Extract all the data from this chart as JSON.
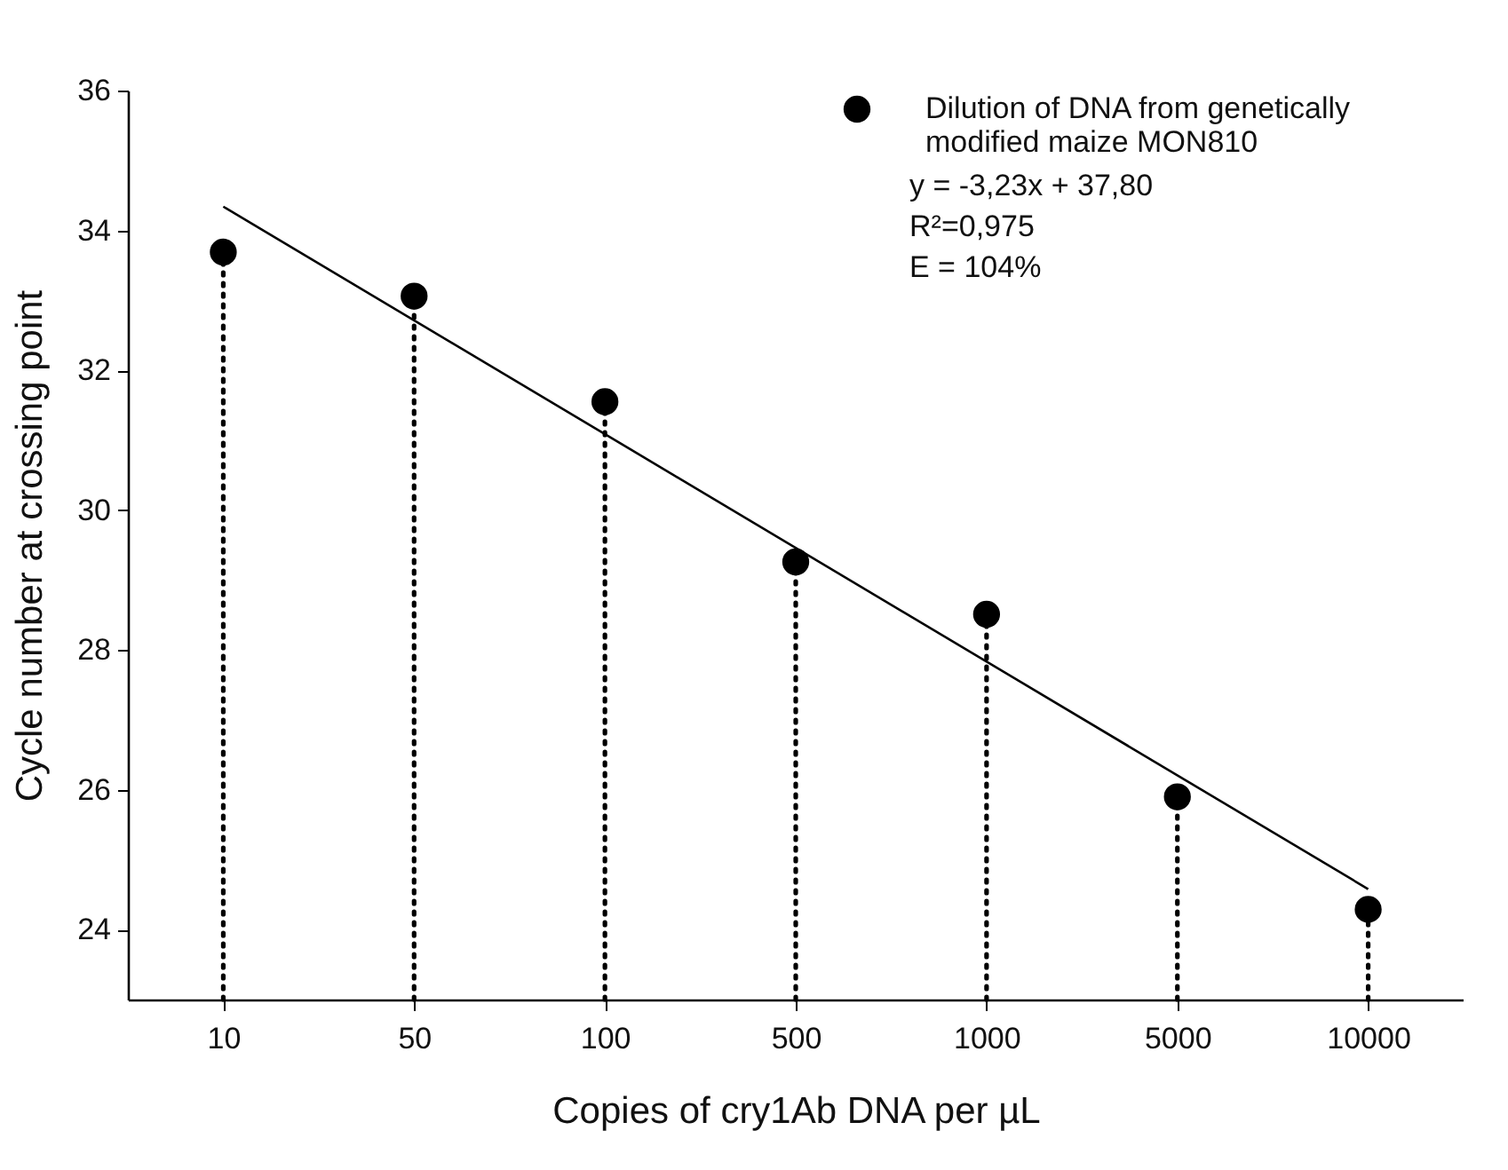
{
  "chart_data": {
    "type": "lollipop",
    "xlabel": "Copies of cry1Ab DNA per µL",
    "ylabel": "Cycle number at crossing point",
    "categories": [
      "10",
      "50",
      "100",
      "500",
      "1000",
      "5000",
      "10000"
    ],
    "series": [
      {
        "name": "Dilution of DNA from genetically modified maize MON810",
        "type": "lollipop",
        "color": "#000000",
        "marker": "circle",
        "line_style": "dotted",
        "values": [
          33.69,
          33.06,
          31.55,
          29.26,
          28.51,
          25.9,
          24.29
        ]
      },
      {
        "type": "line",
        "color": "#000000",
        "line_style": "solid",
        "x": [
          "10",
          "10000"
        ],
        "values": [
          34.34,
          24.58
        ]
      }
    ],
    "annotations": [
      "y = -3,23x + 37,80",
      "R²=0,975",
      "E = 104%"
    ],
    "ylim": [
      23,
      36
    ],
    "yticks": [
      24,
      26,
      28,
      30,
      32,
      34,
      36
    ],
    "legend": "top right"
  }
}
